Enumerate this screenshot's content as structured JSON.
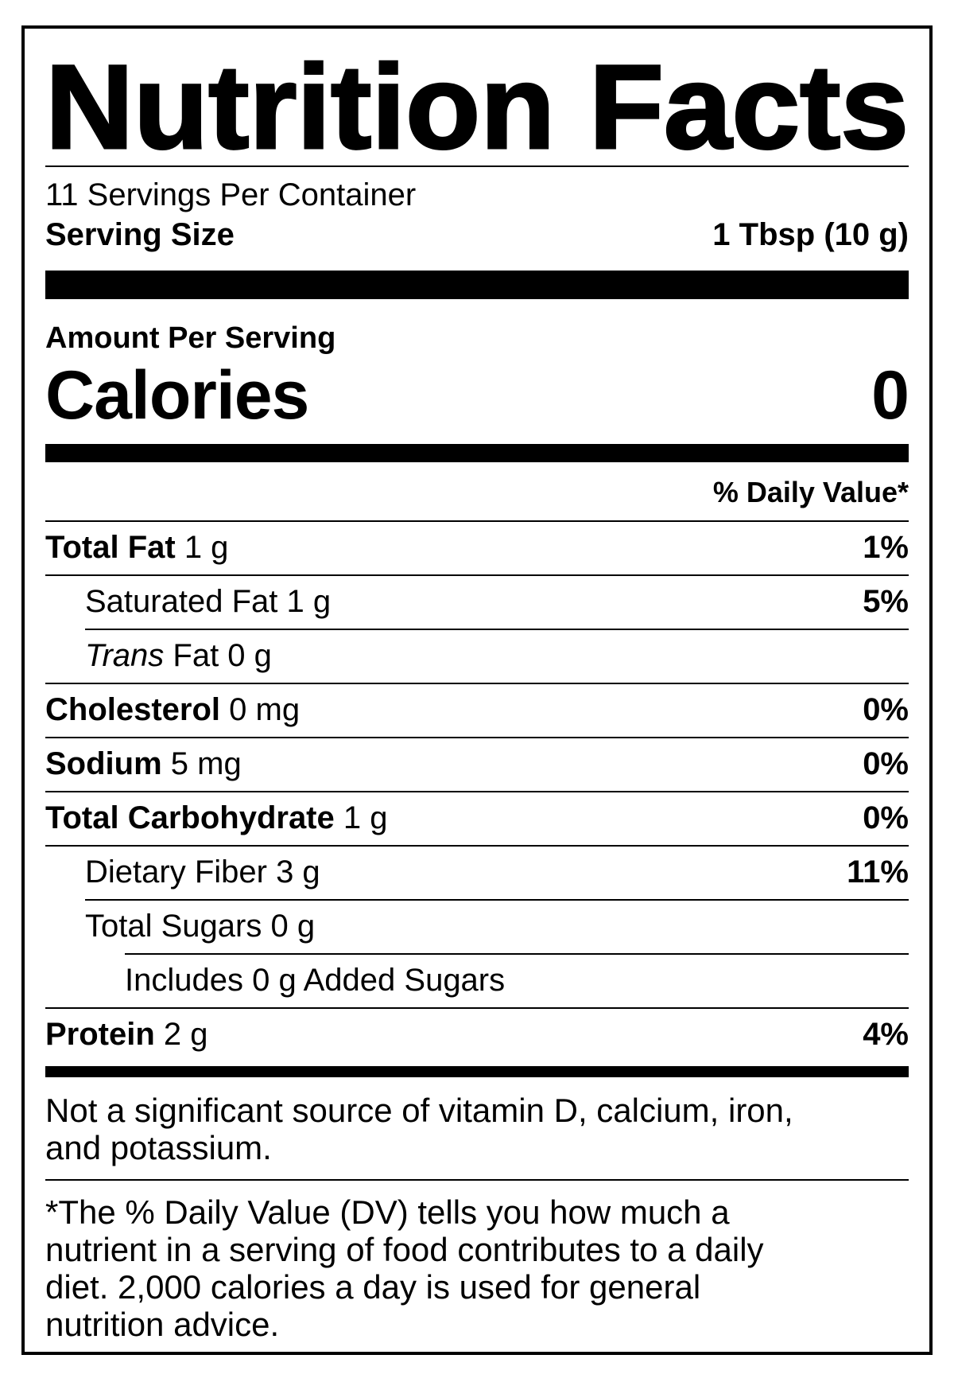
{
  "label": {
    "title": "Nutrition Facts",
    "servings_per_container": "11 Servings Per Container",
    "serving_size_label": "Serving Size",
    "serving_size_value": "1 Tbsp (10 g)",
    "amount_per_serving": "Amount Per Serving",
    "calories_label": "Calories",
    "calories_value": "0",
    "daily_value_header": "% Daily Value*",
    "nutrients": [
      {
        "name": "Total Fat",
        "amount": "1 g",
        "dv": "1%",
        "name_bold": true,
        "italic_prefix": "",
        "indent": 0,
        "rule_indent": 0
      },
      {
        "name": "Saturated Fat",
        "amount": "1 g",
        "dv": "5%",
        "name_bold": false,
        "italic_prefix": "",
        "indent": 1,
        "rule_indent": 0
      },
      {
        "name": "Fat",
        "amount": "0 g",
        "dv": "",
        "name_bold": false,
        "italic_prefix": "Trans",
        "indent": 1,
        "rule_indent": 1
      },
      {
        "name": "Cholesterol",
        "amount": "0 mg",
        "dv": "0%",
        "name_bold": true,
        "italic_prefix": "",
        "indent": 0,
        "rule_indent": 0
      },
      {
        "name": "Sodium",
        "amount": "5 mg",
        "dv": "0%",
        "name_bold": true,
        "italic_prefix": "",
        "indent": 0,
        "rule_indent": 0
      },
      {
        "name": "Total Carbohydrate",
        "amount": "1 g",
        "dv": "0%",
        "name_bold": true,
        "italic_prefix": "",
        "indent": 0,
        "rule_indent": 0
      },
      {
        "name": "Dietary Fiber",
        "amount": "3 g",
        "dv": "11%",
        "name_bold": false,
        "italic_prefix": "",
        "indent": 1,
        "rule_indent": 0
      },
      {
        "name": "Total Sugars",
        "amount": "0 g",
        "dv": "",
        "name_bold": false,
        "italic_prefix": "",
        "indent": 1,
        "rule_indent": 1
      },
      {
        "name": "Includes 0 g Added Sugars",
        "amount": "",
        "dv": "",
        "name_bold": false,
        "italic_prefix": "",
        "indent": 2,
        "rule_indent": 2
      },
      {
        "name": "Protein",
        "amount": "2 g",
        "dv": "4%",
        "name_bold": true,
        "italic_prefix": "",
        "indent": 0,
        "rule_indent": 0
      }
    ],
    "note_lines": [
      "Not a significant source of vitamin D, calcium, iron,",
      "and potassium."
    ],
    "footnote_lines": [
      "*The % Daily Value (DV) tells you how much a",
      "nutrient in a serving of food contributes to a daily",
      "diet. 2,000 calories a day is used for general",
      "nutrition advice."
    ],
    "colors": {
      "text": "#000000",
      "background": "#ffffff"
    }
  }
}
